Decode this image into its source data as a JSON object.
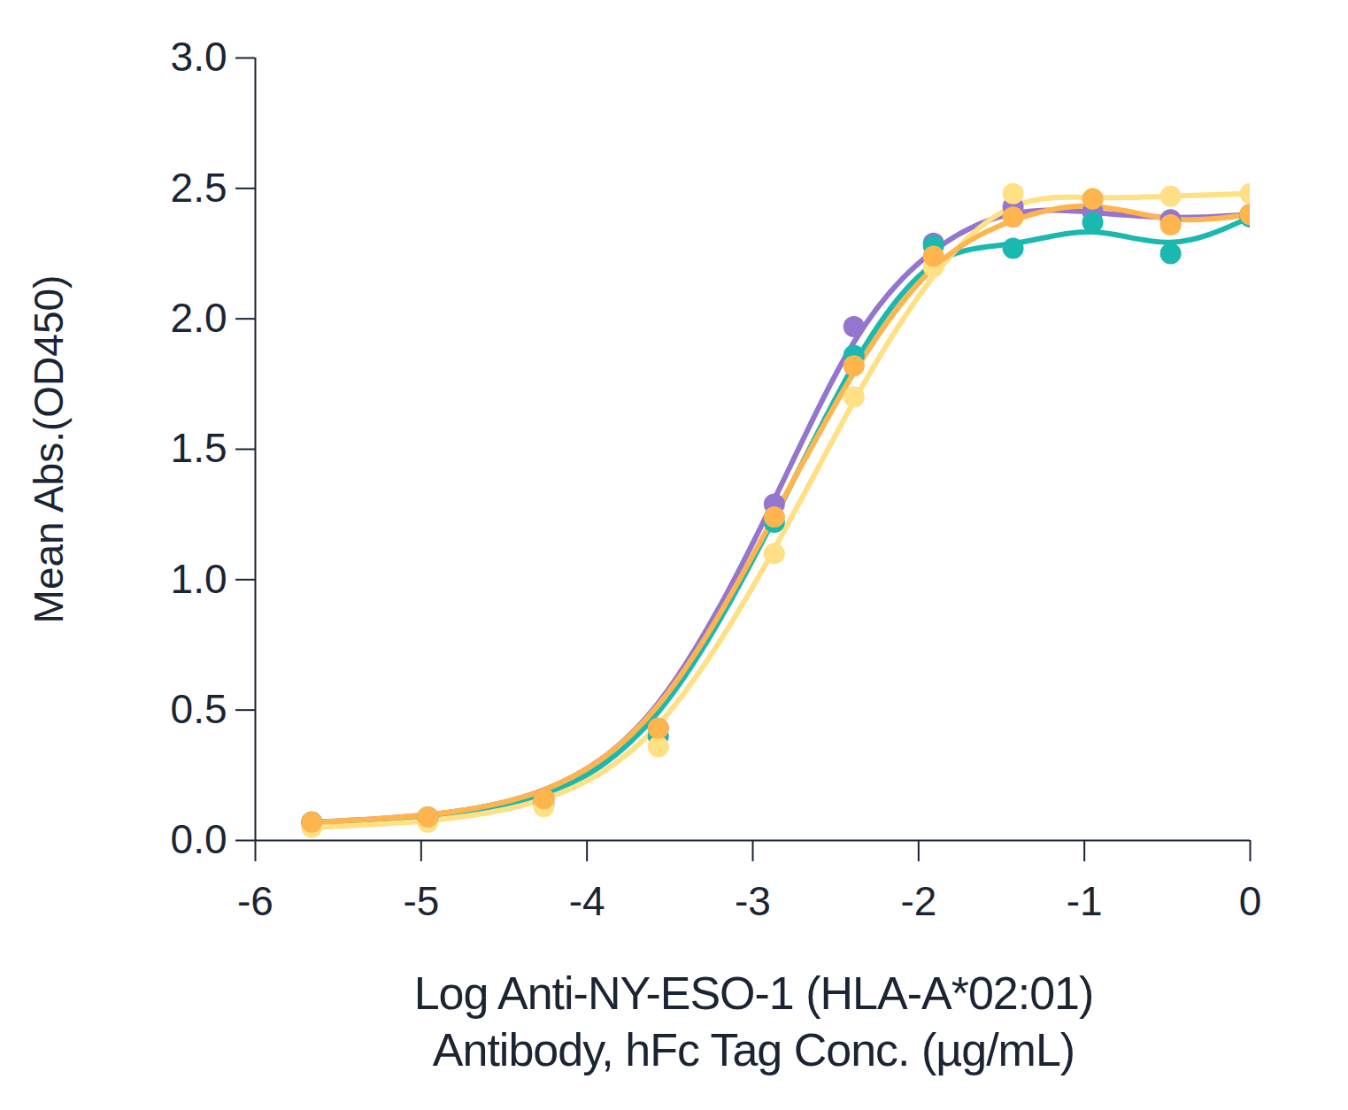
{
  "chart_data": {
    "type": "scatter",
    "x_label": "Log Anti-NY-ESO-1 (HLA-A*02:01)\nAntibody, hFc Tag Conc. (µg/mL)",
    "y_label": "Mean Abs.(OD450)",
    "x": [
      -5.66,
      -4.96,
      -4.26,
      -3.57,
      -2.87,
      -2.39,
      -1.91,
      -1.43,
      -0.95,
      -0.48,
      0
    ],
    "series": [
      {
        "color": "#9575CD",
        "values": [
          0.07,
          0.09,
          0.16,
          0.43,
          1.29,
          1.97,
          2.29,
          2.43,
          2.41,
          2.38,
          2.4
        ]
      },
      {
        "color": "#1BB8B0",
        "values": [
          0.07,
          0.08,
          0.14,
          0.4,
          1.22,
          1.86,
          2.28,
          2.27,
          2.37,
          2.25,
          2.39
        ]
      },
      {
        "color": "#FFE085",
        "values": [
          0.05,
          0.07,
          0.13,
          0.36,
          1.1,
          1.7,
          2.2,
          2.48,
          2.46,
          2.47,
          2.48
        ]
      },
      {
        "color": "#FFB54D",
        "values": [
          0.07,
          0.09,
          0.16,
          0.43,
          1.24,
          1.82,
          2.24,
          2.39,
          2.46,
          2.36,
          2.4
        ]
      }
    ],
    "marker": "circle",
    "line_style": "solid",
    "xlim": [
      -6,
      0
    ],
    "xticks": [
      -6,
      -5,
      -4,
      -3,
      -2,
      -1,
      0
    ],
    "ylim": [
      0,
      3
    ],
    "yticks": [
      {
        "value": 0,
        "label": "0.0"
      },
      0.5,
      {
        "value": 1,
        "label": "1.0"
      },
      1.5,
      {
        "value": 2,
        "label": "2.0"
      },
      2.5,
      {
        "value": 3,
        "label": "3.0"
      }
    ],
    "grid": false
  }
}
